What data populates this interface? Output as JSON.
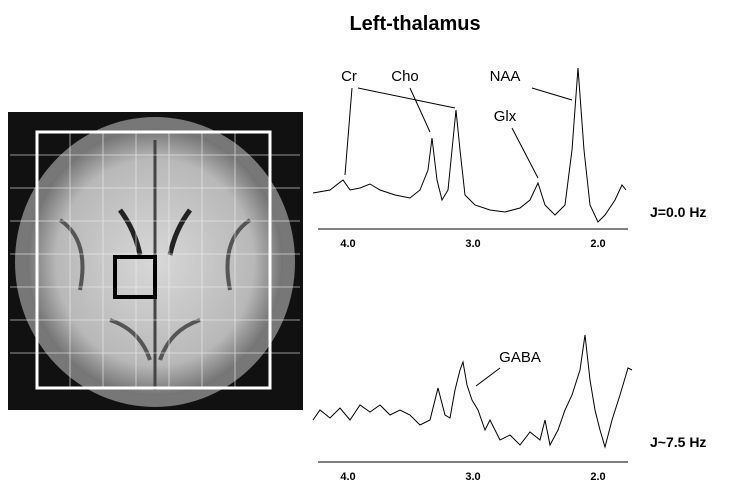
{
  "title": "Left-thalamus",
  "top_spectrum": {
    "peaks": [
      "Cr",
      "Cho",
      "NAA",
      "Glx"
    ],
    "ticks": [
      "4.0",
      "3.0",
      "2.0"
    ],
    "label": "J=0.0 Hz"
  },
  "bottom_spectrum": {
    "peaks": [
      "GABA"
    ],
    "ticks": [
      "4.0",
      "3.0",
      "2.0"
    ],
    "label": "J~7.5 Hz"
  }
}
